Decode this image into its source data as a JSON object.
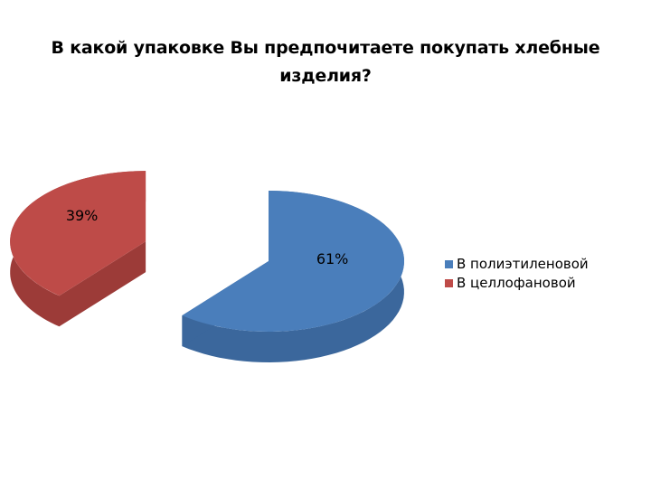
{
  "chart_data": {
    "type": "pie",
    "title": "В какой упаковке Вы предпочитаете покупать хлебные изделия?",
    "categories": [
      "В полиэтиленовой",
      "В целлофановой"
    ],
    "values": [
      61,
      39
    ],
    "data_labels": [
      "61%",
      "39%"
    ],
    "colors": [
      "#4a7ebb",
      "#be4b48"
    ],
    "side_colors": [
      "#3b679c",
      "#9c3b38"
    ],
    "style": "3d-exploded",
    "legend_position": "right"
  }
}
